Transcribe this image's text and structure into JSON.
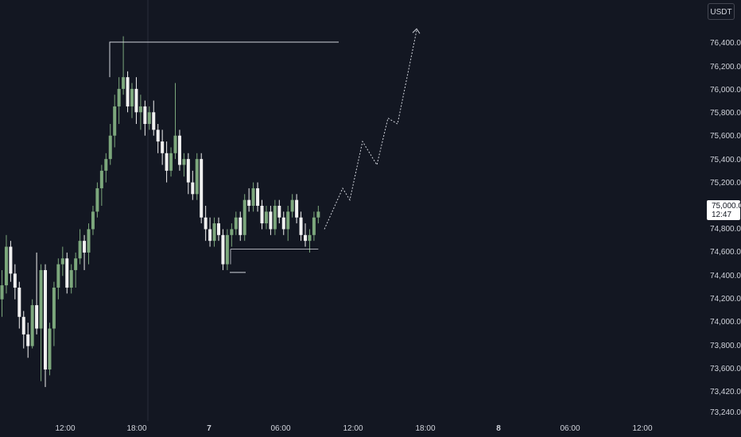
{
  "header": {
    "currency": "USDT"
  },
  "price_label": {
    "price": "75,000.0",
    "countdown": "12:47"
  },
  "chart_data": {
    "type": "candlestick",
    "y_ticks": [
      "76,400.0",
      "76,200.0",
      "76,000.0",
      "75,800.0",
      "75,600.0",
      "75,400.0",
      "75,200.0",
      "75,000.0",
      "74,800.0",
      "74,600.0",
      "74,400.0",
      "74,200.0",
      "74,000.0",
      "73,800.0",
      "73,600.0",
      "73,420.0",
      "73,240.0"
    ],
    "x_ticks": [
      {
        "label": "12:00",
        "bold": false
      },
      {
        "label": "18:00",
        "bold": false
      },
      {
        "label": "7",
        "bold": true
      },
      {
        "label": "06:00",
        "bold": false
      },
      {
        "label": "12:00",
        "bold": false
      },
      {
        "label": "18:00",
        "bold": false
      },
      {
        "label": "8",
        "bold": true
      },
      {
        "label": "06:00",
        "bold": false
      },
      {
        "label": "12:00",
        "bold": false
      }
    ],
    "ylim": [
      73240,
      76600
    ],
    "colors": {
      "up": "#7ca77c",
      "down": "#f0f0f0",
      "background": "#131722",
      "projection": "#d1d4dc",
      "level": "#d1d4dc"
    },
    "candles": [
      [
        74200,
        74450,
        74050,
        74320
      ],
      [
        74320,
        74750,
        74250,
        74650
      ],
      [
        74650,
        74700,
        74350,
        74420
      ],
      [
        74420,
        74500,
        74200,
        74300
      ],
      [
        74300,
        74350,
        73950,
        74050
      ],
      [
        74050,
        74100,
        73780,
        73900
      ],
      [
        73900,
        74000,
        73700,
        73800
      ],
      [
        73800,
        74200,
        73780,
        74150
      ],
      [
        74150,
        74600,
        73900,
        73950
      ],
      [
        73950,
        74500,
        73500,
        74450
      ],
      [
        74450,
        74500,
        73450,
        73600
      ],
      [
        73600,
        74000,
        73550,
        73950
      ],
      [
        73950,
        74350,
        73800,
        74300
      ],
      [
        74300,
        74550,
        74200,
        74500
      ],
      [
        74500,
        74650,
        74400,
        74550
      ],
      [
        74550,
        74600,
        74250,
        74300
      ],
      [
        74300,
        74500,
        74250,
        74450
      ],
      [
        74450,
        74600,
        74300,
        74550
      ],
      [
        74550,
        74800,
        74500,
        74700
      ],
      [
        74700,
        74750,
        74450,
        74600
      ],
      [
        74600,
        74850,
        74500,
        74800
      ],
      [
        74800,
        75000,
        74750,
        74950
      ],
      [
        74950,
        75200,
        74900,
        75150
      ],
      [
        75150,
        75350,
        75000,
        75300
      ],
      [
        75300,
        75450,
        75200,
        75400
      ],
      [
        75400,
        75700,
        75350,
        75600
      ],
      [
        75600,
        75950,
        75500,
        75850
      ],
      [
        75850,
        76100,
        75700,
        76000
      ],
      [
        76000,
        76450,
        75950,
        76100
      ],
      [
        76100,
        76150,
        75800,
        75850
      ],
      [
        75850,
        76050,
        75750,
        76000
      ],
      [
        76000,
        76100,
        75700,
        75800
      ],
      [
        75800,
        75950,
        75650,
        75850
      ],
      [
        75850,
        75900,
        75600,
        75700
      ],
      [
        75700,
        75850,
        75650,
        75800
      ],
      [
        75800,
        75900,
        75600,
        75650
      ],
      [
        75650,
        75700,
        75450,
        75550
      ],
      [
        75550,
        75650,
        75350,
        75450
      ],
      [
        75450,
        75550,
        75200,
        75300
      ],
      [
        75300,
        75500,
        75250,
        75450
      ],
      [
        75450,
        76050,
        75400,
        75600
      ],
      [
        75600,
        75650,
        75300,
        75350
      ],
      [
        75350,
        75450,
        75250,
        75400
      ],
      [
        75400,
        75450,
        75100,
        75200
      ],
      [
        75200,
        75300,
        75050,
        75100
      ],
      [
        75100,
        75450,
        75050,
        75400
      ],
      [
        75400,
        75450,
        74850,
        74900
      ],
      [
        74900,
        75000,
        74700,
        74800
      ],
      [
        74800,
        74900,
        74650,
        74700
      ],
      [
        74700,
        74900,
        74650,
        74850
      ],
      [
        74850,
        74900,
        74700,
        74750
      ],
      [
        74750,
        74800,
        74450,
        74500
      ],
      [
        74500,
        74800,
        74450,
        74750
      ],
      [
        74750,
        74850,
        74650,
        74800
      ],
      [
        74800,
        74950,
        74750,
        74900
      ],
      [
        74900,
        74950,
        74700,
        74750
      ],
      [
        74750,
        75100,
        74700,
        75050
      ],
      [
        75050,
        75150,
        74950,
        75000
      ],
      [
        75000,
        75200,
        74950,
        75150
      ],
      [
        75150,
        75200,
        74950,
        75000
      ],
      [
        75000,
        75050,
        74800,
        74850
      ],
      [
        74850,
        75000,
        74800,
        74950
      ],
      [
        74950,
        75000,
        74750,
        74800
      ],
      [
        74800,
        75050,
        74750,
        75000
      ],
      [
        75000,
        75050,
        74850,
        74900
      ],
      [
        74900,
        74950,
        74750,
        74800
      ],
      [
        74800,
        75000,
        74700,
        74950
      ],
      [
        74950,
        75100,
        74900,
        75050
      ],
      [
        75050,
        75100,
        74850,
        74900
      ],
      [
        74900,
        74950,
        74700,
        74750
      ],
      [
        74750,
        74850,
        74650,
        74700
      ],
      [
        74700,
        74800,
        74600,
        74750
      ],
      [
        74750,
        74950,
        74700,
        74900
      ],
      [
        74900,
        75000,
        74850,
        74950
      ]
    ],
    "projection_path": [
      [
        74800,
        "c73"
      ],
      [
        75150,
        "p1"
      ],
      [
        75050,
        "p2"
      ],
      [
        75550,
        "p3"
      ],
      [
        75350,
        "p4"
      ],
      [
        75750,
        "p5"
      ],
      [
        75700,
        "p6"
      ],
      [
        76500,
        "p7"
      ]
    ],
    "levels": [
      {
        "price": 76400,
        "name": "resistance-level-line"
      },
      {
        "price": 74630,
        "name": "support-range-line"
      },
      {
        "price": 74430,
        "name": "low-level-line"
      }
    ]
  }
}
